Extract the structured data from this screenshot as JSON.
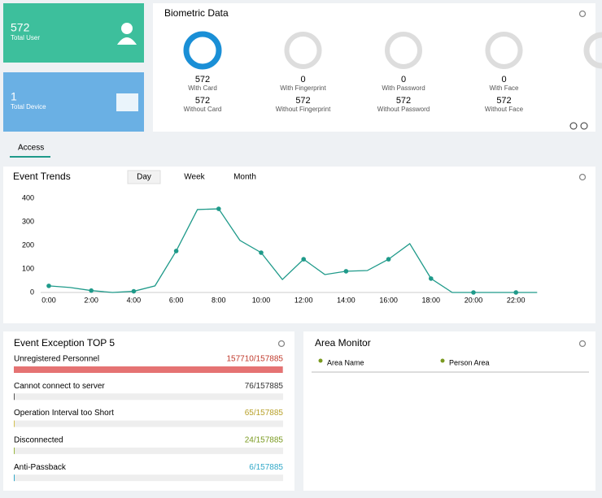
{
  "stats": [
    {
      "value": "572",
      "label": "Total User"
    },
    {
      "value": "1",
      "label": "Total Device"
    }
  ],
  "biometric": {
    "title": "Biometric Data",
    "items": [
      {
        "count": "572",
        "label": "With Card",
        "without_count": "572",
        "without_label": "Without Card"
      },
      {
        "count": "0",
        "label": "With Fingerprint",
        "without_count": "572",
        "without_label": "Without Fingerprint"
      },
      {
        "count": "0",
        "label": "With Password",
        "without_count": "572",
        "without_label": "Without Password"
      },
      {
        "count": "0",
        "label": "With Face",
        "without_count": "572",
        "without_label": "Without Face"
      }
    ]
  },
  "tabs": [
    "Access"
  ],
  "chart_data": {
    "type": "line",
    "title": "Event Trends",
    "periods": [
      "Day",
      "Week",
      "Month"
    ],
    "color": "#1f9a8a",
    "categories": [
      "0:00",
      null,
      "2:00",
      null,
      "4:00",
      null,
      "6:00",
      null,
      "8:00",
      null,
      "10:00",
      null,
      "12:00",
      null,
      "14:00",
      null,
      "16:00",
      null,
      "18:00",
      null,
      "20:00",
      null,
      "22:00",
      null
    ],
    "values": [
      28,
      21,
      8,
      0,
      5,
      28,
      176,
      352,
      355,
      221,
      169,
      55,
      141,
      76,
      90,
      93,
      141,
      207,
      59,
      0,
      0,
      0,
      0,
      0
    ],
    "ylim": [
      0,
      400
    ],
    "yticks": [
      0,
      100,
      200,
      300,
      400
    ]
  },
  "exceptions": {
    "title": "Event Exception TOP 5",
    "items": [
      {
        "name": "Unregistered Personnel",
        "count": 157710,
        "total": 157885,
        "label": "157710/157885",
        "color": "#c0392b",
        "bar": "#e57373"
      },
      {
        "name": "Cannot connect to server",
        "count": 76,
        "total": 157885,
        "label": "76/157885",
        "color": "#333333",
        "bar": "#555555"
      },
      {
        "name": "Operation Interval too Short",
        "count": 65,
        "total": 157885,
        "label": "65/157885",
        "color": "#b8a12a",
        "bar": "#d4c050"
      },
      {
        "name": "Disconnected",
        "count": 24,
        "total": 157885,
        "label": "24/157885",
        "color": "#7a9a20",
        "bar": "#9ab840"
      },
      {
        "name": "Anti-Passback",
        "count": 6,
        "total": 157885,
        "label": "6/157885",
        "color": "#31a8c8",
        "bar": "#31a8c8"
      }
    ]
  },
  "area_monitor": {
    "title": "Area Monitor",
    "columns": [
      "Area Name",
      "Person Area"
    ]
  }
}
